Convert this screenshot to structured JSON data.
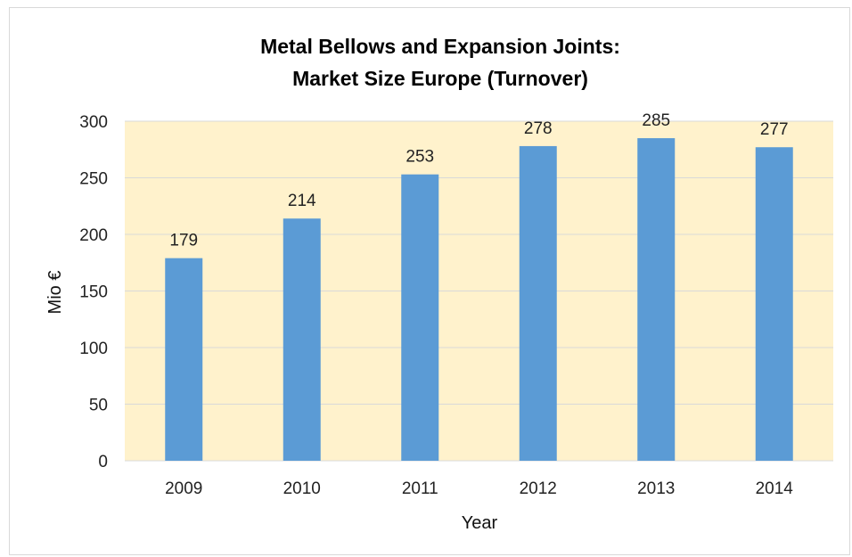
{
  "chart_data": {
    "type": "bar",
    "title": [
      "Metal Bellows and Expansion Joints:",
      "Market Size Europe (Turnover)"
    ],
    "xlabel": "Year",
    "ylabel": "Mio €",
    "categories": [
      "2009",
      "2010",
      "2011",
      "2012",
      "2013",
      "2014"
    ],
    "values": [
      179,
      214,
      253,
      278,
      285,
      277
    ],
    "ylim": [
      0,
      300
    ],
    "yticks": [
      0,
      50,
      100,
      150,
      200,
      250,
      300
    ],
    "grid": true,
    "legend": "none",
    "colors": {
      "bar": "#5b9bd5",
      "plot_background": "#fff2cc",
      "gridline": "#d9d9d9"
    }
  }
}
